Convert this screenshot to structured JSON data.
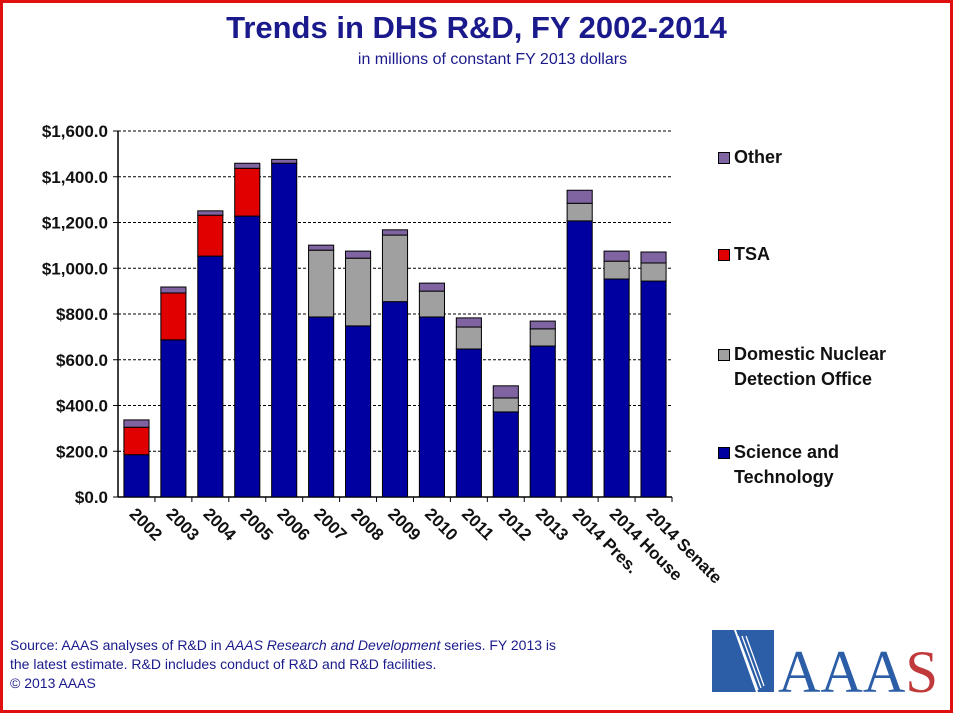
{
  "chart_data": {
    "type": "bar",
    "stacked": true,
    "title": "Trends in DHS R&D, FY 2002-2014",
    "subtitle": "in millions of constant FY 2013 dollars",
    "xlabel": "",
    "ylabel": "",
    "ylim": [
      0,
      1600
    ],
    "yticks": [
      "$0.0",
      "$200.0",
      "$400.0",
      "$600.0",
      "$800.0",
      "$1,000.0",
      "$1,200.0",
      "$1,400.0",
      "$1,600.0"
    ],
    "grid": true,
    "legend_position": "right",
    "categories": [
      "2002",
      "2003",
      "2004",
      "2005",
      "2006",
      "2007",
      "2008",
      "2009",
      "2010",
      "2011",
      "2012",
      "2013",
      "2014 Pres.",
      "2014 House",
      "2014 Senate"
    ],
    "series": [
      {
        "name": "Science and Technology",
        "color": "#0000a0",
        "values": [
          185,
          687,
          1053,
          1228,
          1459,
          787,
          748,
          854,
          787,
          647,
          372,
          660,
          1207,
          953,
          944
        ]
      },
      {
        "name": "Domestic Nuclear Detection Office",
        "color": "#a0a0a0",
        "values": [
          0,
          0,
          0,
          0,
          0,
          292,
          296,
          291,
          113,
          96,
          61,
          75,
          77,
          78,
          79
        ]
      },
      {
        "name": "TSA",
        "color": "#e00000",
        "values": [
          120,
          205,
          179,
          209,
          0,
          0,
          0,
          0,
          0,
          0,
          0,
          0,
          0,
          0,
          0
        ]
      },
      {
        "name": "Other",
        "color": "#8064a2",
        "values": [
          32,
          26,
          19,
          22,
          17,
          22,
          31,
          23,
          35,
          40,
          53,
          34,
          57,
          44,
          48
        ]
      }
    ]
  },
  "legend": [
    {
      "lines": [
        "Other"
      ],
      "color": "#8064a2"
    },
    {
      "lines": [
        "TSA"
      ],
      "color": "#e00000"
    },
    {
      "lines": [
        "Domestic Nuclear",
        "Detection Office"
      ],
      "color": "#a0a0a0"
    },
    {
      "lines": [
        "Science and",
        "Technology"
      ],
      "color": "#0000a0"
    }
  ],
  "footer": {
    "line1_a": "Source: AAAS analyses of R&D in ",
    "line1_italic": "AAAS Research and Development",
    "line1_b": " series. FY 2013 is",
    "line2": "the latest estimate. R&D includes conduct of R&D and R&D facilities.",
    "line3": "© 2013 AAAS"
  },
  "logo": {
    "text": "AAAS",
    "blue": "#2b5ea7",
    "red": "#c0393b"
  }
}
